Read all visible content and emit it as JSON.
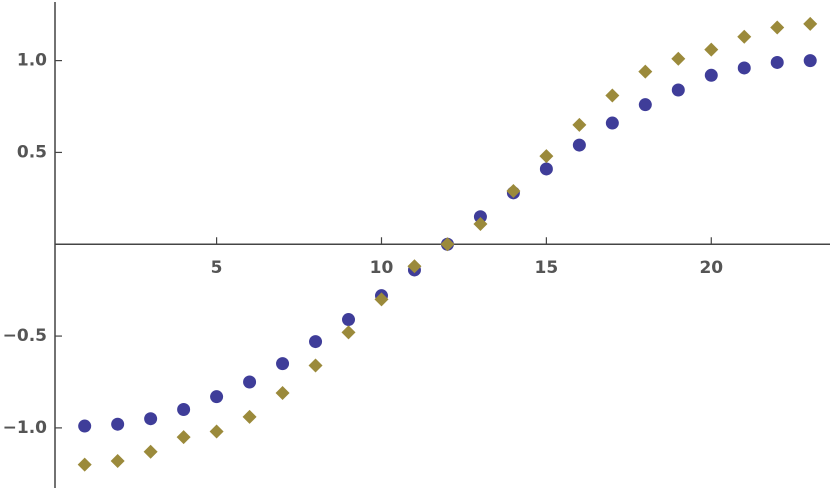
{
  "chart_data": {
    "type": "scatter",
    "x": [
      1,
      2,
      3,
      4,
      5,
      6,
      7,
      8,
      9,
      10,
      11,
      12,
      13,
      14,
      15,
      16,
      17,
      18,
      19,
      20,
      21,
      22,
      23
    ],
    "series": [
      {
        "color": "#3f3d99",
        "marker": "circle",
        "values": [
          -0.99,
          -0.98,
          -0.95,
          -0.9,
          -0.83,
          -0.75,
          -0.65,
          -0.53,
          -0.41,
          -0.28,
          -0.14,
          0,
          0.15,
          0.28,
          0.41,
          0.54,
          0.66,
          0.76,
          0.84,
          0.92,
          0.96,
          0.99,
          1.0
        ]
      },
      {
        "color": "#9b8a3b",
        "marker": "diamond",
        "values": [
          -1.2,
          -1.18,
          -1.13,
          -1.05,
          -1.02,
          -0.94,
          -0.81,
          -0.66,
          -0.48,
          -0.3,
          -0.12,
          0,
          0.11,
          0.29,
          0.48,
          0.65,
          0.81,
          0.94,
          1.01,
          1.06,
          1.13,
          1.18,
          1.2
        ]
      }
    ],
    "xlim": [
      0.1,
      23.6
    ],
    "ylim": [
      -1.36,
      1.33
    ],
    "xticks": [
      5,
      10,
      15,
      20
    ],
    "yticks": [
      {
        "value": -1,
        "label": "−1.0"
      },
      {
        "value": -0.5,
        "label": "−0.5"
      },
      0.5,
      {
        "value": 1,
        "label": "1.0"
      }
    ]
  }
}
